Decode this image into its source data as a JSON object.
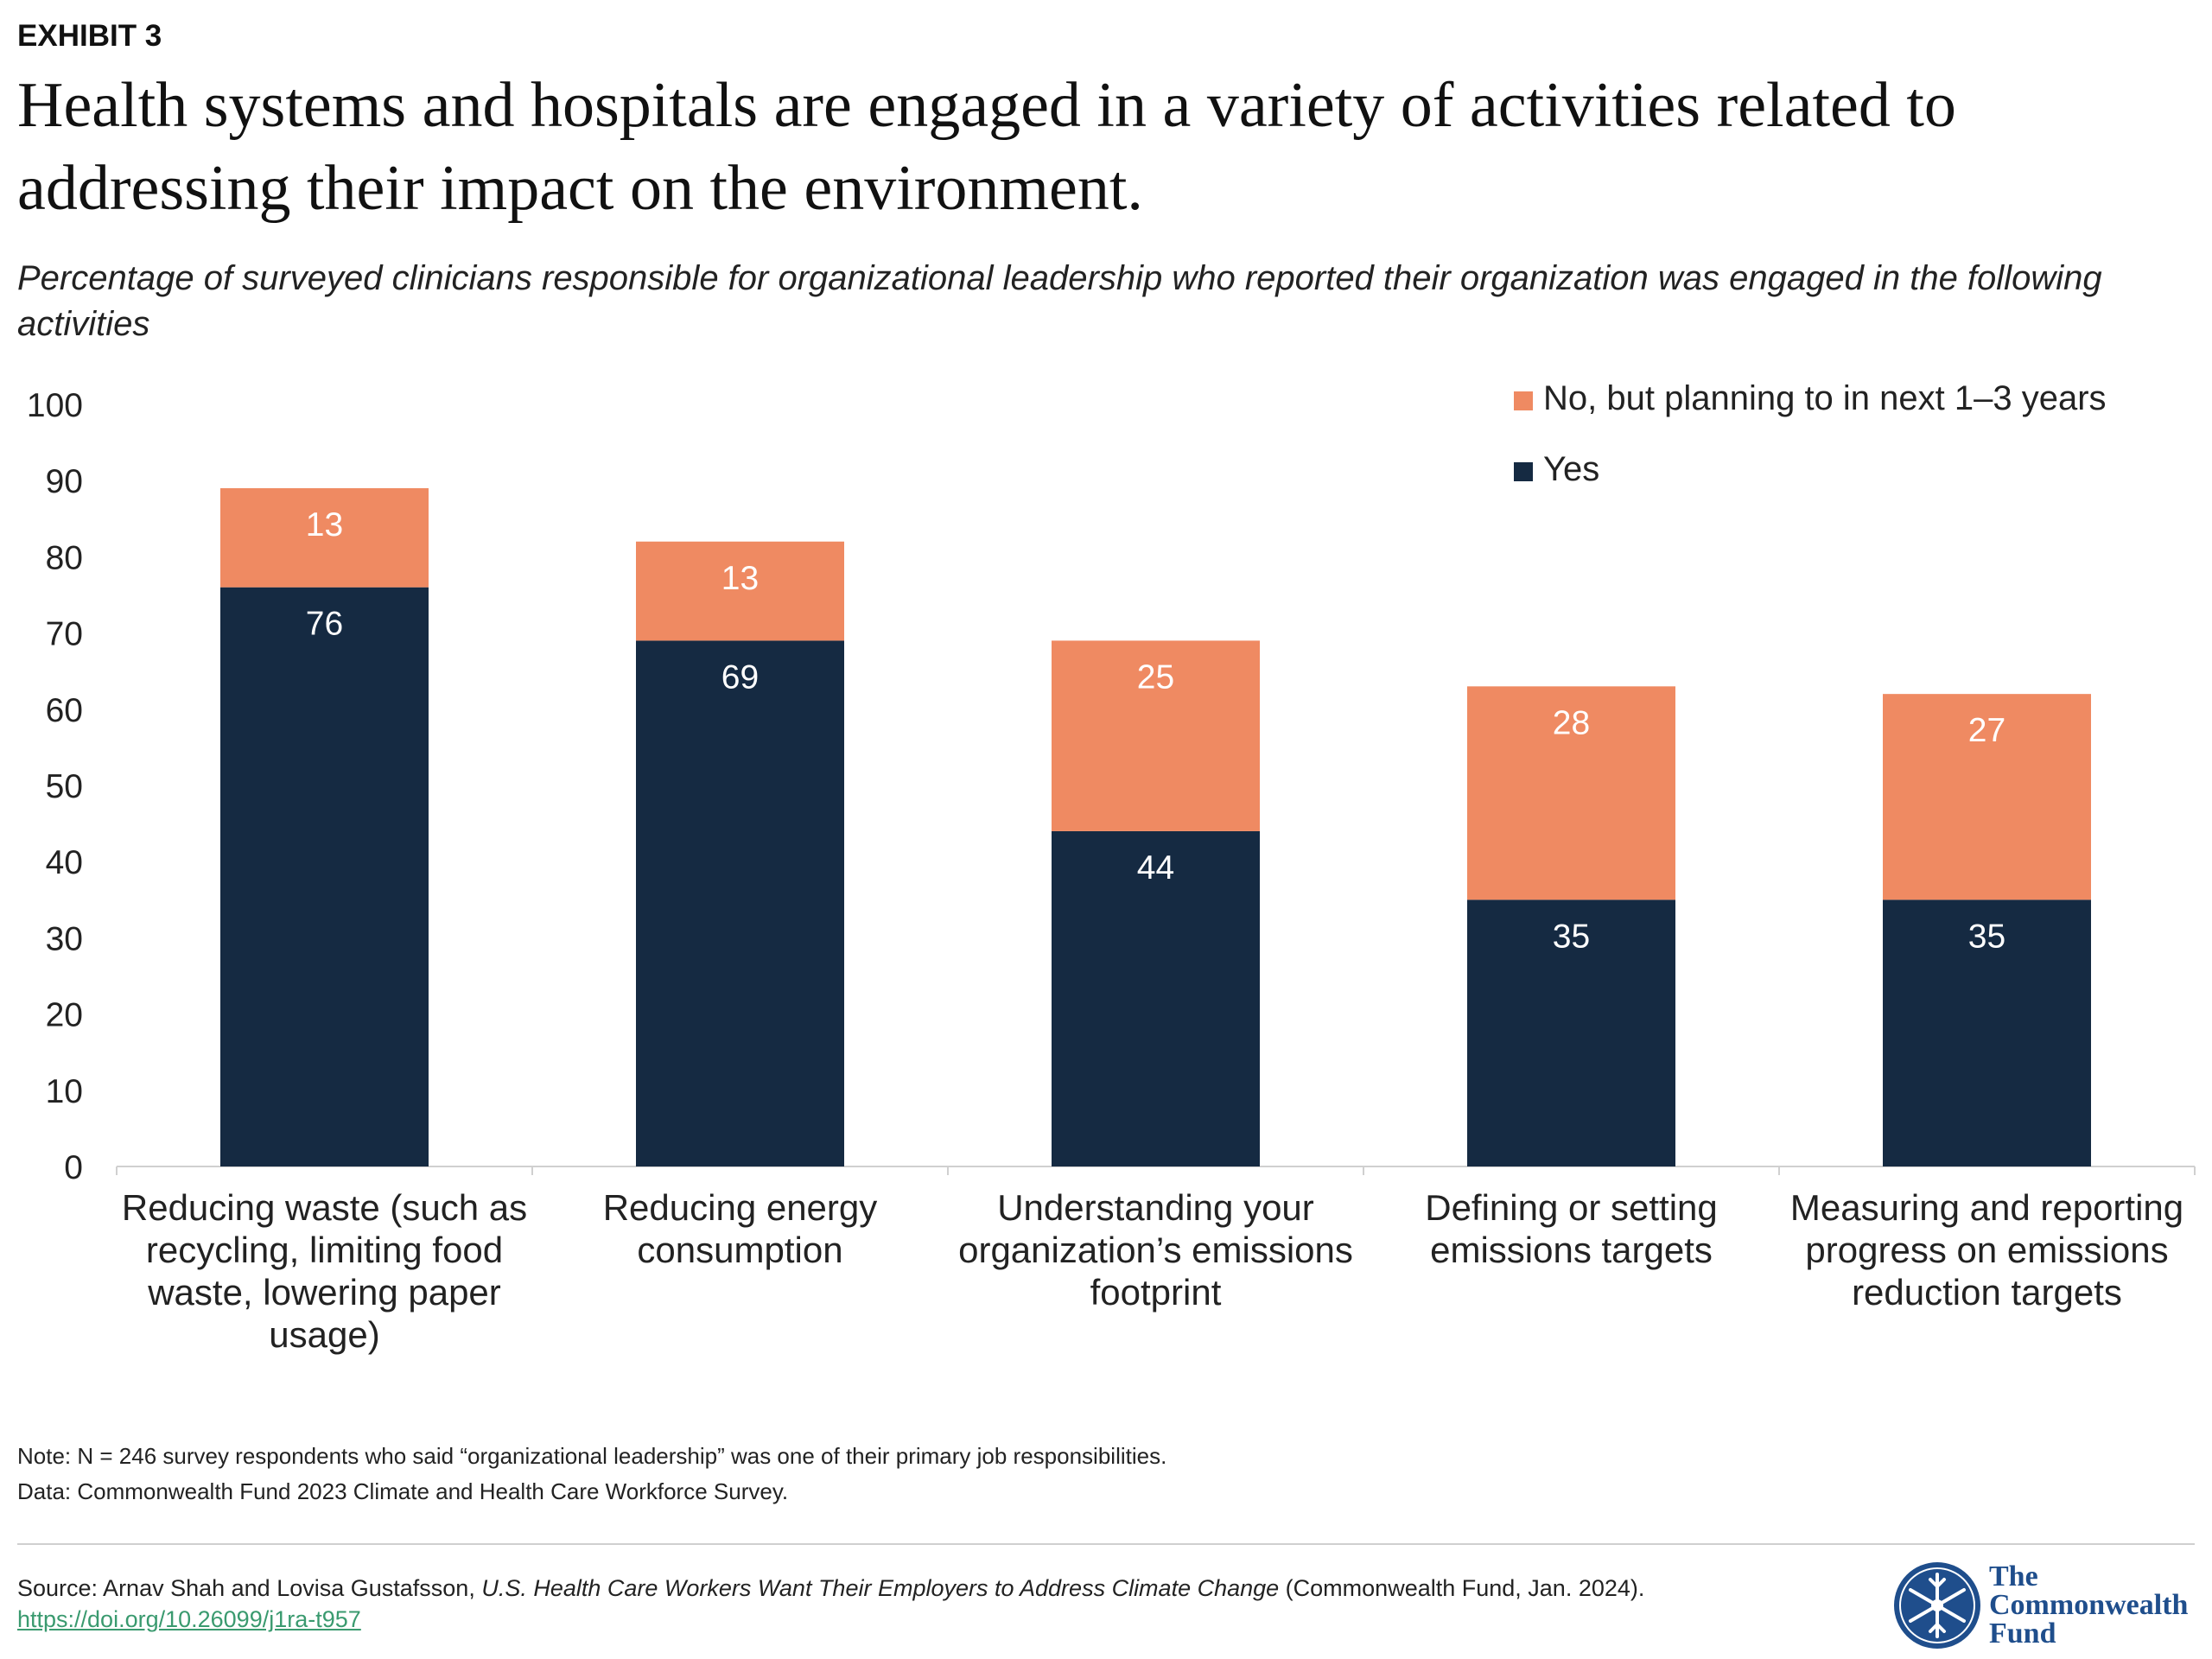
{
  "header": {
    "exhibit": "EXHIBIT 3",
    "title": "Health systems and hospitals are engaged in a variety of activities related to addressing their impact on the environment.",
    "subtitle": "Percentage of surveyed clinicians responsible for organizational leadership who reported their organization was engaged in the following activities"
  },
  "chart_data": {
    "type": "bar",
    "stacked": true,
    "title": "",
    "xlabel": "",
    "ylabel": "",
    "ylim": [
      0,
      100
    ],
    "yticks": [
      0,
      10,
      20,
      30,
      40,
      50,
      60,
      70,
      80,
      90,
      100
    ],
    "grid": false,
    "legend_position": "top-right",
    "categories": [
      [
        "Reducing waste (such as",
        "recycling, limiting food",
        "waste, lowering paper",
        "usage)"
      ],
      [
        "Reducing energy",
        "consumption"
      ],
      [
        "Understanding your",
        "organization’s emissions",
        "footprint"
      ],
      [
        "Defining or setting",
        "emissions targets"
      ],
      [
        "Measuring and reporting",
        "progress on emissions",
        "reduction targets"
      ]
    ],
    "series": [
      {
        "name": "Yes",
        "color": "#152a42",
        "values": [
          76,
          69,
          44,
          35,
          35
        ]
      },
      {
        "name": "No, but planning to in next 1–3 years",
        "color": "#ef8a62",
        "values": [
          13,
          13,
          25,
          28,
          27
        ]
      }
    ],
    "legend_order": [
      1,
      0
    ]
  },
  "notes": {
    "note": "Note: N = 246 survey respondents who said “organizational leadership” was one of their primary job responsibilities.",
    "data": "Data: Commonwealth Fund 2023 Climate and Health Care Workforce Survey."
  },
  "source": {
    "prefix": "Source: Arnav Shah and Lovisa Gustafsson, ",
    "work": "U.S. Health Care Workers Want Their Employers to Address Climate Change",
    "suffix": " (Commonwealth Fund, Jan. 2024). ",
    "link": "https://doi.org/10.26099/j1ra-t957"
  },
  "logo": {
    "line1": "The",
    "line2": "Commonwealth",
    "line3": "Fund",
    "icon": "snowflake-seal-icon",
    "color": "#1f4e8c"
  }
}
